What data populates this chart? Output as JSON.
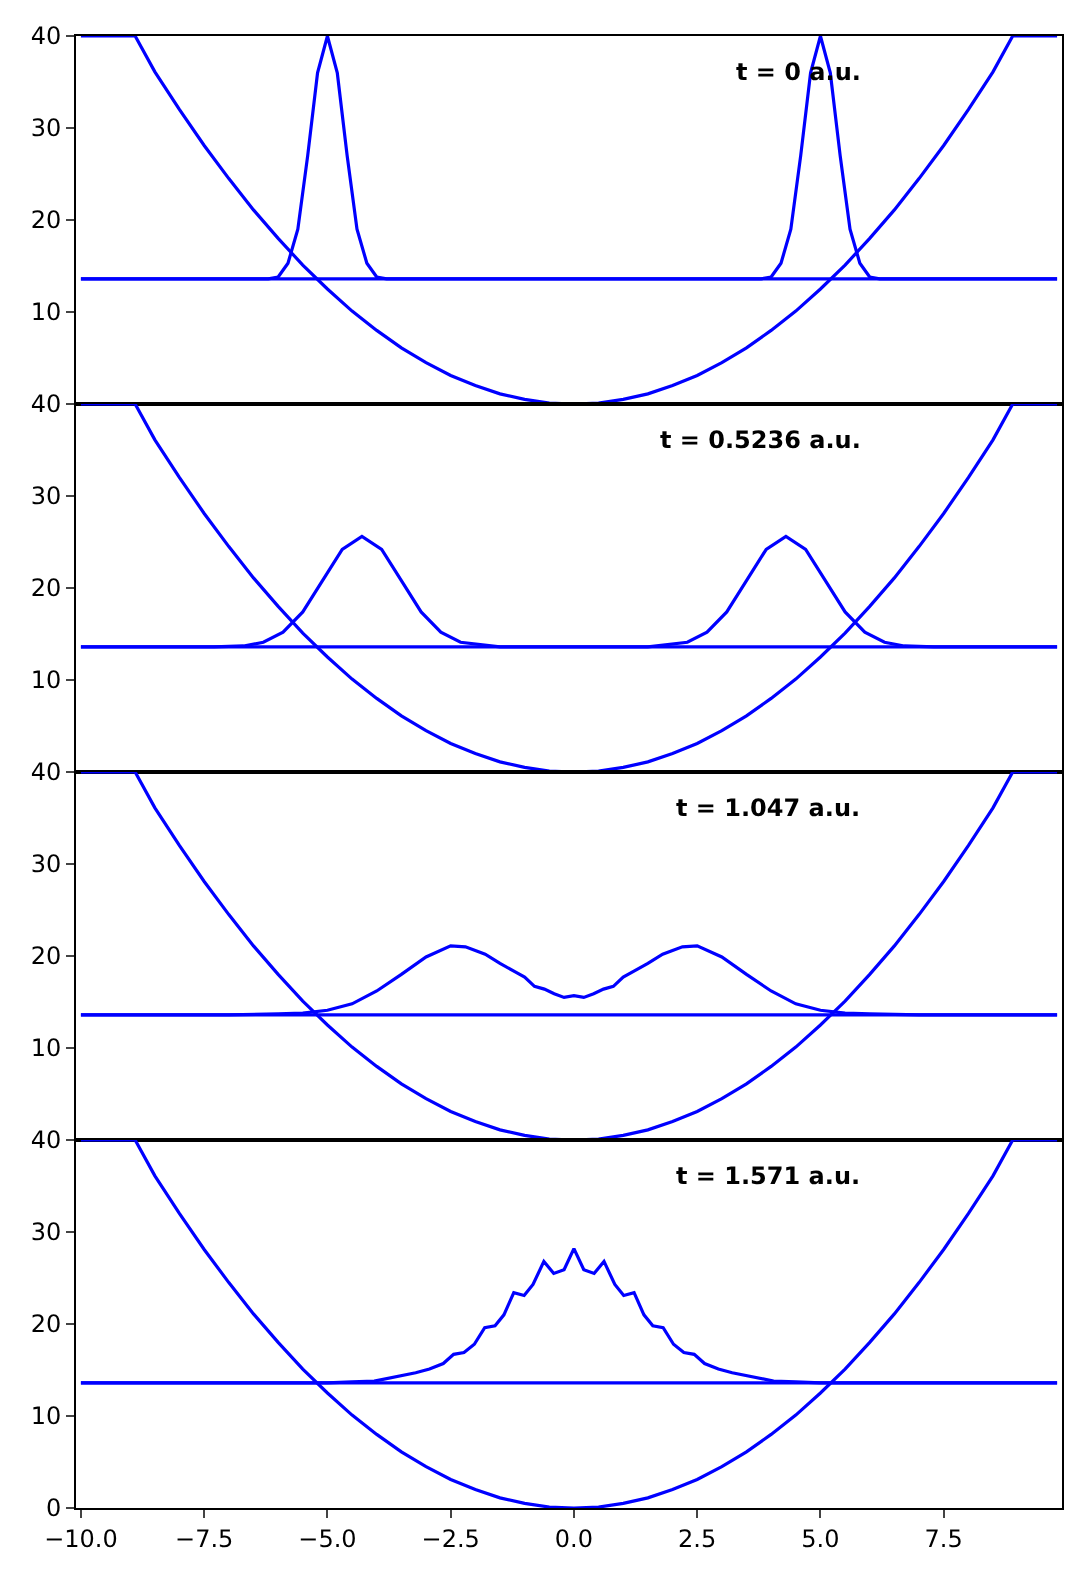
{
  "chart_data": [
    {
      "type": "line",
      "annotations": [
        "t = 0 a.u."
      ],
      "xlim": [
        -10.1,
        9.9
      ],
      "ylim": [
        0,
        40
      ],
      "yticks": [
        10,
        20,
        30,
        40
      ],
      "tick_labels": "y",
      "grid": false,
      "marker": "none",
      "line_style": "solid",
      "series": [
        {
          "color": "#0000ff",
          "x": [
            -10,
            -8.9,
            -8.5,
            -8,
            -7.5,
            -7,
            -6.5,
            -6,
            -5.5,
            -5,
            -4.5,
            -4,
            -3.5,
            -3,
            -2.5,
            -2,
            -1.5,
            -1,
            -0.5,
            0,
            0.5,
            1,
            1.5,
            2,
            2.5,
            3,
            3.5,
            4,
            4.5,
            5,
            5.5,
            6,
            6.5,
            7,
            7.5,
            8,
            8.5,
            8.9,
            9.8
          ],
          "values": [
            40,
            40,
            36.1,
            32,
            28.1,
            24.5,
            21.1,
            18,
            15.1,
            12.5,
            10.1,
            8,
            6.1,
            4.5,
            3.1,
            2,
            1.1,
            0.5,
            0.1,
            0,
            0.1,
            0.5,
            1.1,
            2,
            3.1,
            4.5,
            6.1,
            8,
            10.1,
            12.5,
            15.1,
            18,
            21.1,
            24.5,
            28.1,
            32,
            36.1,
            40,
            40
          ]
        },
        {
          "color": "#0000ff",
          "x": [
            -10,
            9.8
          ],
          "values": [
            13.6,
            13.6
          ]
        },
        {
          "color": "#0000ff",
          "x": [
            -10,
            -6.2,
            -6.0,
            -5.8,
            -5.6,
            -5.4,
            -5.2,
            -5.0,
            -4.8,
            -4.6,
            -4.4,
            -4.2,
            -4.0,
            -3.8,
            3.8,
            4.0,
            4.2,
            4.4,
            4.6,
            4.8,
            5.0,
            5.2,
            5.4,
            5.6,
            5.8,
            6.0,
            6.2,
            9.8
          ],
          "values": [
            13.6,
            13.6,
            13.8,
            15.3,
            19,
            27,
            36,
            40,
            36,
            27,
            19,
            15.3,
            13.8,
            13.6,
            13.6,
            13.8,
            15.3,
            19,
            27,
            36,
            40,
            36,
            27,
            19,
            15.3,
            13.8,
            13.6,
            13.6
          ]
        }
      ]
    },
    {
      "type": "line",
      "annotations": [
        "t = 0.5236 a.u."
      ],
      "xlim": [
        -10.1,
        9.9
      ],
      "ylim": [
        0,
        40
      ],
      "yticks": [
        10,
        20,
        30,
        40
      ],
      "tick_labels": "y",
      "grid": false,
      "marker": "none",
      "line_style": "solid",
      "series": [
        {
          "color": "#0000ff",
          "x": [
            -10,
            -8.9,
            -8.5,
            -8,
            -7.5,
            -7,
            -6.5,
            -6,
            -5.5,
            -5,
            -4.5,
            -4,
            -3.5,
            -3,
            -2.5,
            -2,
            -1.5,
            -1,
            -0.5,
            0,
            0.5,
            1,
            1.5,
            2,
            2.5,
            3,
            3.5,
            4,
            4.5,
            5,
            5.5,
            6,
            6.5,
            7,
            7.5,
            8,
            8.5,
            8.9,
            9.8
          ],
          "values": [
            40,
            40,
            36.1,
            32,
            28.1,
            24.5,
            21.1,
            18,
            15.1,
            12.5,
            10.1,
            8,
            6.1,
            4.5,
            3.1,
            2,
            1.1,
            0.5,
            0.1,
            0,
            0.1,
            0.5,
            1.1,
            2,
            3.1,
            4.5,
            6.1,
            8,
            10.1,
            12.5,
            15.1,
            18,
            21.1,
            24.5,
            28.1,
            32,
            36.1,
            40,
            40
          ]
        },
        {
          "color": "#0000ff",
          "x": [
            -10,
            9.8
          ],
          "values": [
            13.6,
            13.6
          ]
        },
        {
          "color": "#0000ff",
          "x": [
            -10,
            -7.3,
            -6.7,
            -6.3,
            -5.9,
            -5.5,
            -5.1,
            -4.7,
            -4.3,
            -3.9,
            -3.5,
            -3.1,
            -2.7,
            -2.3,
            -1.5,
            1.5,
            2.3,
            2.7,
            3.1,
            3.5,
            3.9,
            4.3,
            4.7,
            5.1,
            5.5,
            5.9,
            6.3,
            6.7,
            7.3,
            9.8
          ],
          "values": [
            13.6,
            13.6,
            13.7,
            14.1,
            15.2,
            17.4,
            20.8,
            24.2,
            25.6,
            24.2,
            20.8,
            17.4,
            15.2,
            14.1,
            13.6,
            13.6,
            14.1,
            15.2,
            17.4,
            20.8,
            24.2,
            25.6,
            24.2,
            20.8,
            17.4,
            15.2,
            14.1,
            13.7,
            13.6,
            13.6
          ]
        }
      ]
    },
    {
      "type": "line",
      "annotations": [
        "t = 1.047 a.u."
      ],
      "xlim": [
        -10.1,
        9.9
      ],
      "ylim": [
        0,
        40
      ],
      "yticks": [
        10,
        20,
        30,
        40
      ],
      "tick_labels": "y",
      "grid": false,
      "marker": "none",
      "line_style": "solid",
      "series": [
        {
          "color": "#0000ff",
          "x": [
            -10,
            -8.9,
            -8.5,
            -8,
            -7.5,
            -7,
            -6.5,
            -6,
            -5.5,
            -5,
            -4.5,
            -4,
            -3.5,
            -3,
            -2.5,
            -2,
            -1.5,
            -1,
            -0.5,
            0,
            0.5,
            1,
            1.5,
            2,
            2.5,
            3,
            3.5,
            4,
            4.5,
            5,
            5.5,
            6,
            6.5,
            7,
            7.5,
            8,
            8.5,
            8.9,
            9.8
          ],
          "values": [
            40,
            40,
            36.1,
            32,
            28.1,
            24.5,
            21.1,
            18,
            15.1,
            12.5,
            10.1,
            8,
            6.1,
            4.5,
            3.1,
            2,
            1.1,
            0.5,
            0.1,
            0,
            0.1,
            0.5,
            1.1,
            2,
            3.1,
            4.5,
            6.1,
            8,
            10.1,
            12.5,
            15.1,
            18,
            21.1,
            24.5,
            28.1,
            32,
            36.1,
            40,
            40
          ]
        },
        {
          "color": "#0000ff",
          "x": [
            -10,
            9.8
          ],
          "values": [
            13.6,
            13.6
          ]
        },
        {
          "color": "#0000ff",
          "x": [
            -10,
            -7,
            -6,
            -5.5,
            -5,
            -4.5,
            -4,
            -3.5,
            -3,
            -2.5,
            -2.2,
            -1.8,
            -1.5,
            -1.2,
            -1,
            -0.8,
            -0.6,
            -0.4,
            -0.2,
            0,
            0.2,
            0.4,
            0.6,
            0.8,
            1,
            1.2,
            1.5,
            1.8,
            2.2,
            2.5,
            3,
            3.5,
            4,
            4.5,
            5,
            5.5,
            6,
            7,
            9.8
          ],
          "values": [
            13.6,
            13.6,
            13.7,
            13.8,
            14.1,
            14.8,
            16.2,
            18,
            19.9,
            21.1,
            21,
            20.2,
            19.2,
            18.3,
            17.7,
            16.7,
            16.4,
            15.9,
            15.5,
            15.7,
            15.5,
            15.9,
            16.4,
            16.7,
            17.7,
            18.3,
            19.2,
            20.2,
            21,
            21.1,
            19.9,
            18,
            16.2,
            14.8,
            14.1,
            13.8,
            13.7,
            13.6,
            13.6
          ]
        }
      ]
    },
    {
      "type": "line",
      "annotations": [
        "t = 1.571 a.u."
      ],
      "xlim": [
        -10.1,
        9.9
      ],
      "ylim": [
        0,
        40
      ],
      "yticks": [
        0,
        10,
        20,
        30,
        40
      ],
      "xticks": [
        {
          "value": -10,
          "label": "−10.0"
        },
        {
          "value": -7.5,
          "label": "−7.5"
        },
        {
          "value": -5,
          "label": "−5.0"
        },
        {
          "value": -2.5,
          "label": "−2.5"
        },
        {
          "value": 0,
          "label": "0.0"
        },
        {
          "value": 2.5,
          "label": "2.5"
        },
        {
          "value": 5,
          "label": "5.0"
        },
        {
          "value": 7.5,
          "label": "7.5"
        }
      ],
      "grid": false,
      "marker": "none",
      "line_style": "solid",
      "series": [
        {
          "color": "#0000ff",
          "x": [
            -10,
            -8.9,
            -8.5,
            -8,
            -7.5,
            -7,
            -6.5,
            -6,
            -5.5,
            -5,
            -4.5,
            -4,
            -3.5,
            -3,
            -2.5,
            -2,
            -1.5,
            -1,
            -0.5,
            0,
            0.5,
            1,
            1.5,
            2,
            2.5,
            3,
            3.5,
            4,
            4.5,
            5,
            5.5,
            6,
            6.5,
            7,
            7.5,
            8,
            8.5,
            8.9,
            9.8
          ],
          "values": [
            40,
            40,
            36.1,
            32,
            28.1,
            24.5,
            21.1,
            18,
            15.1,
            12.5,
            10.1,
            8,
            6.1,
            4.5,
            3.1,
            2,
            1.1,
            0.5,
            0.1,
            0,
            0.1,
            0.5,
            1.1,
            2,
            3.1,
            4.5,
            6.1,
            8,
            10.1,
            12.5,
            15.1,
            18,
            21.1,
            24.5,
            28.1,
            32,
            36.1,
            40,
            40
          ]
        },
        {
          "color": "#0000ff",
          "x": [
            -10,
            9.8
          ],
          "values": [
            13.6,
            13.6
          ]
        },
        {
          "color": "#0000ff",
          "x": [
            -10,
            -5,
            -4.5,
            -4.05,
            -3.21,
            -2.93,
            -2.65,
            -2.44,
            -2.23,
            -2.02,
            -1.81,
            -1.6,
            -1.42,
            -1.22,
            -1.01,
            -0.83,
            -0.61,
            -0.41,
            -0.2,
            0,
            0.2,
            0.41,
            0.61,
            0.83,
            1.01,
            1.22,
            1.42,
            1.6,
            1.81,
            2.02,
            2.23,
            2.44,
            2.65,
            2.93,
            3.21,
            4.05,
            4.5,
            5,
            9.8
          ],
          "values": [
            13.6,
            13.6,
            13.7,
            13.8,
            14.7,
            15.1,
            15.7,
            16.7,
            16.9,
            17.8,
            19.6,
            19.8,
            21,
            23.4,
            23.1,
            24.3,
            26.8,
            25.5,
            25.9,
            28.2,
            25.9,
            25.5,
            26.8,
            24.3,
            23.1,
            23.4,
            21,
            19.8,
            19.6,
            17.8,
            16.9,
            16.7,
            15.7,
            15.1,
            14.7,
            13.8,
            13.7,
            13.6,
            13.6
          ]
        }
      ]
    }
  ]
}
